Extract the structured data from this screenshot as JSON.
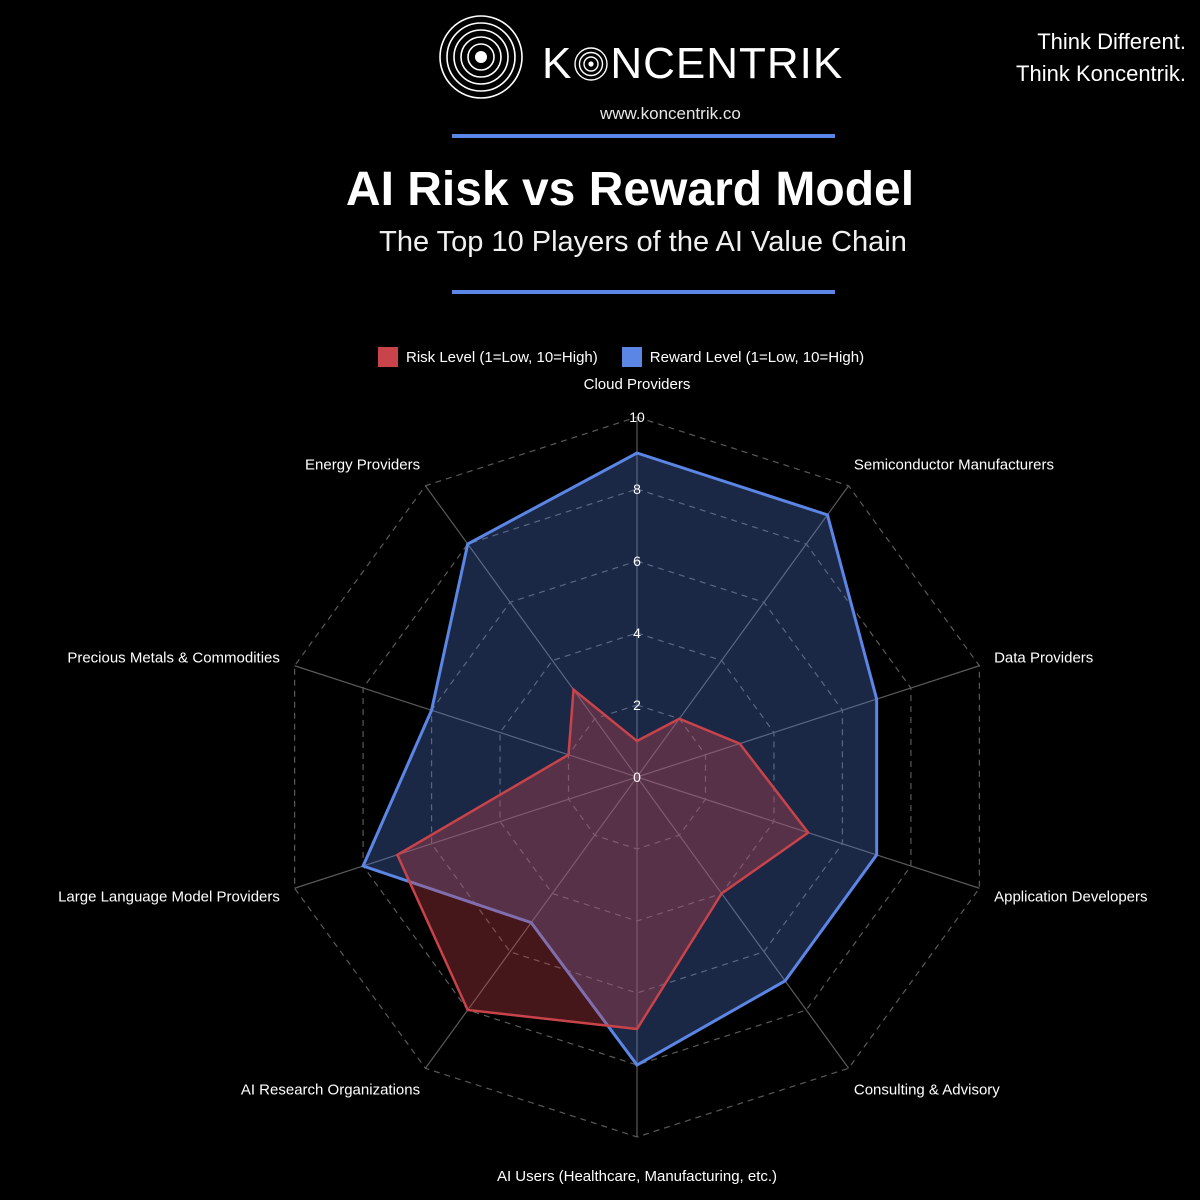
{
  "brand": {
    "name_pre": "K",
    "name_post": "NCENTRIK",
    "url": "www.koncentrik.co",
    "logo_icon": "concentric-circles-icon"
  },
  "tagline": {
    "line1": "Think Different.",
    "line2": "Think Koncentrik."
  },
  "colors": {
    "background": "#000000",
    "accent_rule": "#5b86e5",
    "risk": "#c8434a",
    "reward": "#5b86e5"
  },
  "chart_data": {
    "type": "radar",
    "title": "AI Risk vs Reward Model",
    "subtitle": "The Top 10 Players of the AI Value Chain",
    "categories": [
      "Cloud Providers",
      "Semiconductor Manufacturers",
      "Data Providers",
      "Application Developers",
      "Consulting & Advisory",
      "AI Users (Healthcare, Manufacturing, etc.)",
      "AI Research Organizations",
      "Large Language Model Providers",
      "Precious Metals & Commodities",
      "Energy Providers"
    ],
    "series": [
      {
        "name": "Risk Level (1=Low, 10=High)",
        "color": "#c8434a",
        "values": [
          1,
          2,
          3,
          5,
          4,
          7,
          8,
          7,
          2,
          3
        ]
      },
      {
        "name": "Reward Level (1=Low, 10=High)",
        "color": "#5b86e5",
        "values": [
          9,
          9,
          7,
          7,
          7,
          8,
          5,
          8,
          6,
          8
        ]
      }
    ],
    "rlim": [
      0,
      10
    ],
    "ticks": [
      "0",
      "2",
      "4",
      "6",
      "8",
      "10"
    ],
    "grid": true,
    "legend_position": "top"
  }
}
